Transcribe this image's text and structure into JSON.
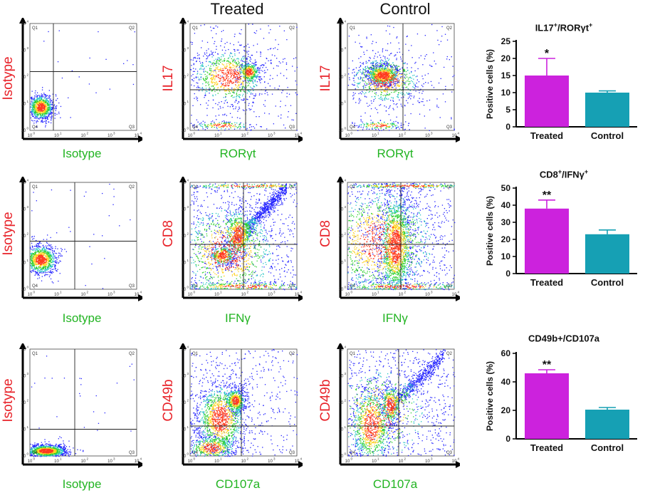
{
  "columns": {
    "treated": "Treated",
    "control": "Control"
  },
  "flow_rows": [
    {
      "y_label": "Isotype",
      "y_treated": "IL17",
      "y_control": "IL17",
      "x_isotype": "Isotype",
      "x_treated": "RORγt",
      "x_control": "RORγt"
    },
    {
      "y_label": "Isotype",
      "y_treated": "CD8",
      "y_control": "CD8",
      "x_isotype": "Isotype",
      "x_treated": "IFNγ",
      "x_control": "IFNγ"
    },
    {
      "y_label": "Isotype",
      "y_treated": "CD49b",
      "y_control": "CD49b",
      "x_isotype": "Isotype",
      "x_treated": "CD107a",
      "x_control": "CD107a"
    }
  ],
  "quadrants": {
    "q1": "Q1",
    "q2": "Q2",
    "q3": "Q3",
    "q4": "Q4"
  },
  "ticks": [
    "10",
    "0",
    "1",
    "2",
    "3",
    "4"
  ],
  "colors": {
    "treated": "#cc22dd",
    "control": "#16a0b4",
    "ylab": "#e8232a",
    "xlab": "#22b422"
  },
  "chart_data": [
    {
      "type": "bar",
      "title_main": "IL17",
      "title_sup1": "+",
      "title_mid": "/RORγt",
      "title_sup2": "+",
      "ylabel": "Positive cells (%)",
      "categories": [
        "Treated",
        "Control"
      ],
      "values": [
        15,
        10
      ],
      "errors": [
        5,
        0.5
      ],
      "significance": [
        "*",
        ""
      ],
      "ylim": [
        0,
        25
      ],
      "yticks": [
        "0",
        "5",
        "10",
        "15",
        "20",
        "25"
      ],
      "ytick_values": [
        0,
        5,
        10,
        15,
        20,
        25
      ]
    },
    {
      "type": "bar",
      "title_main": "CD8",
      "title_sup1": "+",
      "title_mid": "/IFNγ",
      "title_sup2": "+",
      "ylabel": "Positive cells (%)",
      "categories": [
        "Treated",
        "Control"
      ],
      "values": [
        38,
        23
      ],
      "errors": [
        5,
        2.5
      ],
      "significance": [
        "**",
        ""
      ],
      "ylim": [
        0,
        50
      ],
      "yticks": [
        "0",
        "10",
        "20",
        "30",
        "40",
        "50"
      ],
      "ytick_values": [
        0,
        10,
        20,
        30,
        40,
        50
      ]
    },
    {
      "type": "bar",
      "title_main": "CD49b+/CD107a",
      "title_sup1": "",
      "title_mid": "",
      "title_sup2": "",
      "ylabel": "Positive cells (%)",
      "categories": [
        "Treated",
        "Control"
      ],
      "values": [
        46,
        20.5
      ],
      "errors": [
        2.5,
        1.5
      ],
      "significance": [
        "**",
        ""
      ],
      "ylim": [
        0,
        60
      ],
      "yticks": [
        "0",
        "20",
        "40",
        "60"
      ],
      "ytick_values": [
        0,
        20,
        40,
        60
      ]
    }
  ]
}
